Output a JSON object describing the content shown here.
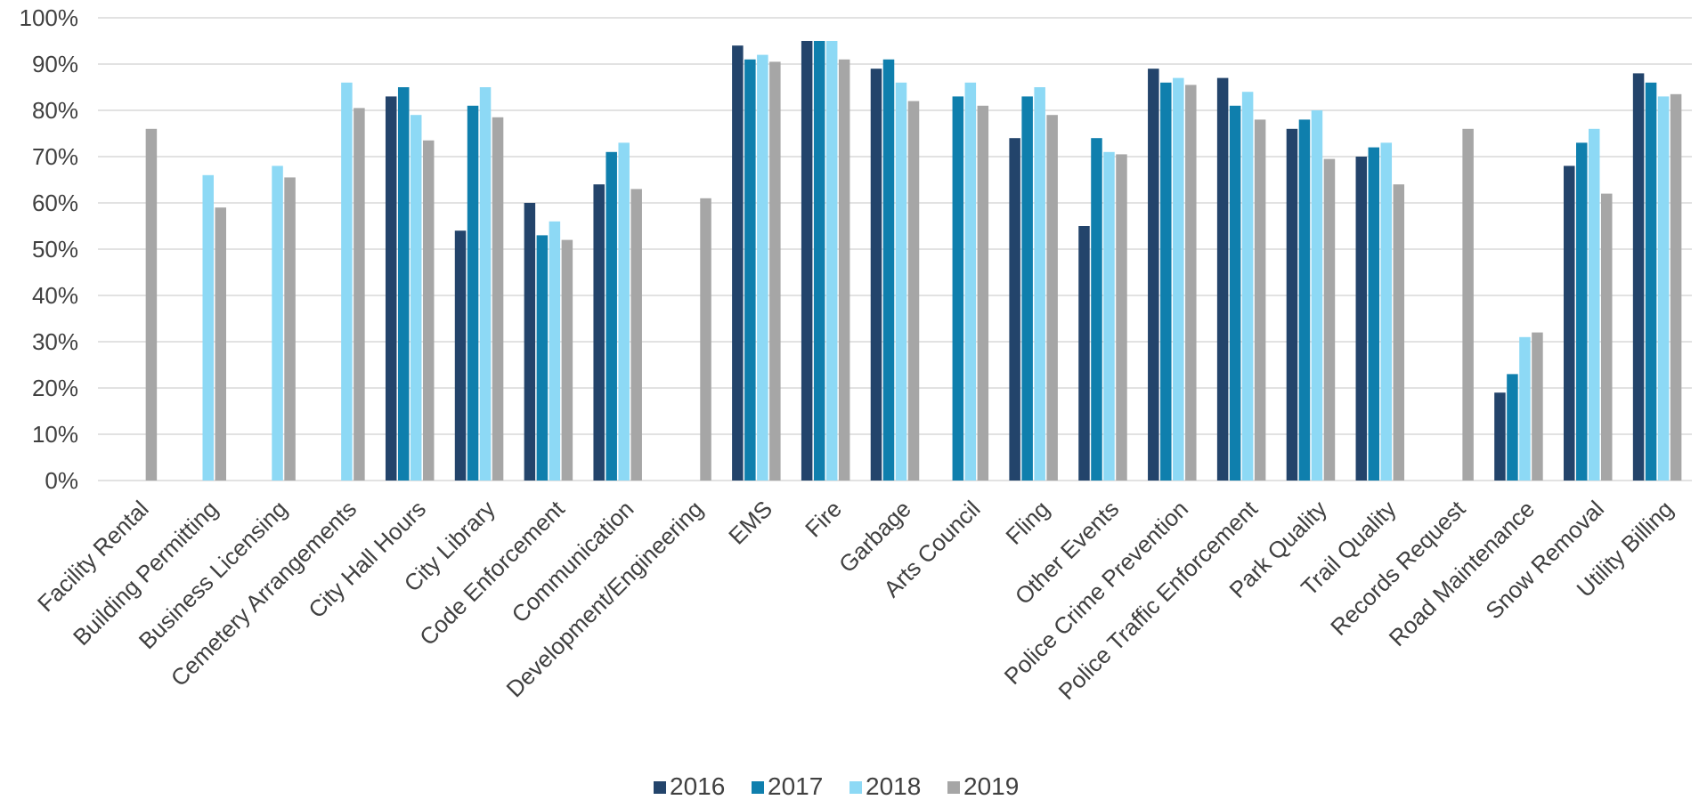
{
  "chart_data": {
    "type": "bar",
    "title": "",
    "xlabel": "",
    "ylabel": "",
    "ylim": [
      0,
      100
    ],
    "y_ticks": [
      "0%",
      "10%",
      "20%",
      "30%",
      "40%",
      "50%",
      "60%",
      "70%",
      "80%",
      "90%",
      "100%"
    ],
    "grid": true,
    "legend_position": "bottom",
    "categories": [
      "Facility Rental",
      "Building Permitting",
      "Business Licensing",
      "Cemetery Arrangements",
      "City Hall Hours",
      "City Library",
      "Code Enforcement",
      "Communication",
      "Development/Engineering",
      "EMS",
      "Fire",
      "Garbage",
      "Arts Council",
      "Fling",
      "Other Events",
      "Police Crime Prevention",
      "Police Traffic Enforcement",
      "Park Quality",
      "Trail Quality",
      "Records Request",
      "Road Maintenance",
      "Snow Removal",
      "Utility Billing"
    ],
    "series": [
      {
        "name": "2016",
        "color": "#23446b",
        "values": [
          null,
          null,
          null,
          null,
          83,
          54,
          60,
          64,
          null,
          94,
          95,
          89,
          null,
          74,
          55,
          89,
          87,
          76,
          70,
          null,
          19,
          68,
          88
        ]
      },
      {
        "name": "2017",
        "color": "#0f7fad",
        "values": [
          null,
          null,
          null,
          null,
          85,
          81,
          53,
          71,
          null,
          91,
          95,
          91,
          83,
          83,
          74,
          86,
          81,
          78,
          72,
          null,
          23,
          73,
          86
        ]
      },
      {
        "name": "2018",
        "color": "#8dd9f5",
        "values": [
          null,
          66,
          68,
          86,
          79,
          85,
          56,
          73,
          null,
          92,
          95,
          86,
          86,
          85,
          71,
          87,
          84,
          80,
          73,
          null,
          31,
          76,
          83
        ]
      },
      {
        "name": "2019",
        "color": "#a6a6a6",
        "values": [
          76,
          59,
          65.5,
          80.5,
          73.5,
          78.5,
          52,
          63,
          61,
          90.5,
          91,
          82,
          81,
          79,
          70.5,
          85.5,
          78,
          69.5,
          64,
          76,
          32,
          62,
          83.5
        ]
      }
    ]
  }
}
